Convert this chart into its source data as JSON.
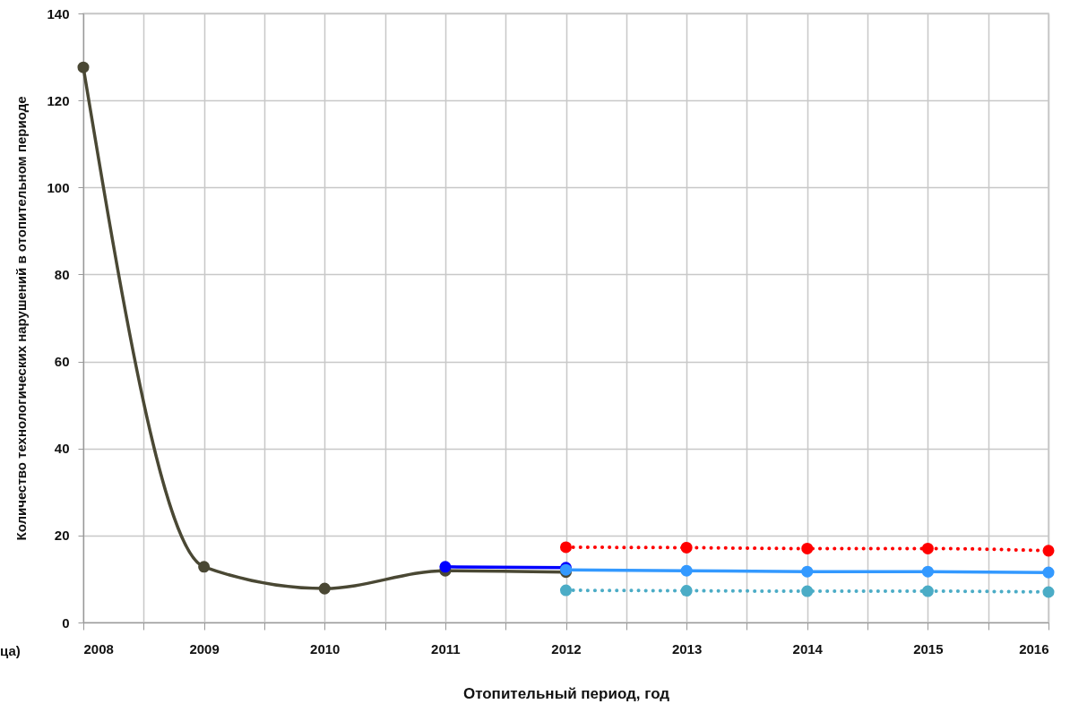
{
  "chart_data": {
    "type": "line",
    "xlabel": "Отопительный период, год",
    "ylabel": "Количество технологических нарушений в отопительном периоде",
    "xlim": [
      2008,
      2016
    ],
    "xticks": [
      2008,
      {
        "value": 2008.5,
        "label": null
      },
      2009,
      {
        "value": 2009.5,
        "label": null
      },
      2010,
      {
        "value": 2010.5,
        "label": null
      },
      2011,
      {
        "value": 2011.5,
        "label": null
      },
      2012,
      {
        "value": 2012.5,
        "label": null
      },
      2013,
      {
        "value": 2013.5,
        "label": null
      },
      2014,
      {
        "value": 2014.5,
        "label": null
      },
      2015,
      {
        "value": 2015.5,
        "label": null
      },
      2016
    ],
    "ylim": [
      0,
      140
    ],
    "yticks": [
      0,
      20,
      40,
      60,
      80,
      100,
      120,
      140
    ],
    "grid": true,
    "legend": false,
    "annotations": [
      "ца)"
    ],
    "series": [
      {
        "color": "#4a4834",
        "x": [
          2008,
          2009,
          2010,
          2011,
          2012
        ],
        "values": [
          127.6,
          12.8,
          7.8,
          11.9,
          11.6
        ],
        "line_style": "solid",
        "marker": "circle"
      },
      {
        "color": "#0000ff",
        "x": [
          2011,
          2012
        ],
        "values": [
          12.8,
          12.6
        ],
        "line_style": "solid",
        "marker": "circle"
      },
      {
        "color": "#3399ff",
        "x": [
          2012,
          2013,
          2014,
          2015,
          2016
        ],
        "values": [
          12.1,
          11.9,
          11.7,
          11.7,
          11.5
        ],
        "line_style": "solid",
        "marker": "circle"
      },
      {
        "color": "#ff0000",
        "x": [
          2012,
          2013,
          2014,
          2015,
          2016
        ],
        "values": [
          17.3,
          17.2,
          17.0,
          17.0,
          16.5
        ],
        "line_style": "dotted",
        "marker": "circle"
      },
      {
        "color": "#4bacc6",
        "x": [
          2012,
          2013,
          2014,
          2015,
          2016
        ],
        "values": [
          7.4,
          7.3,
          7.2,
          7.2,
          7.0
        ],
        "line_style": "dotted",
        "marker": "circle"
      }
    ]
  }
}
